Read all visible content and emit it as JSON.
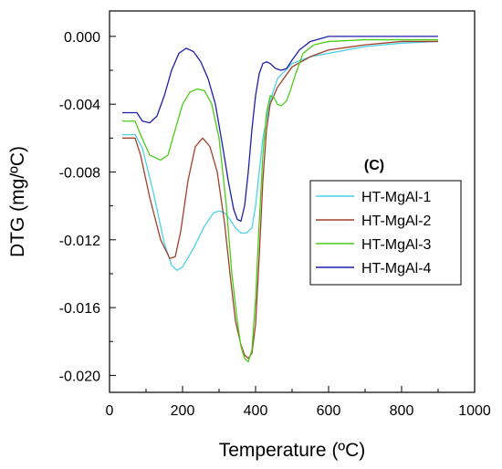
{
  "chart_data": {
    "type": "line",
    "panel_label": "(C)",
    "xlabel": "Temperature (ºC)",
    "ylabel": "DTG (mg/ºC)",
    "xlim": [
      0,
      1000
    ],
    "ylim": [
      -0.021,
      0.0015
    ],
    "x_ticks": [
      "0",
      "200",
      "400",
      "600",
      "800",
      "1000"
    ],
    "y_ticks": [
      "-0.020",
      "-0.016",
      "-0.012",
      "-0.008",
      "-0.004",
      "0.000"
    ],
    "x_tick_values": [
      0,
      200,
      400,
      600,
      800,
      1000
    ],
    "y_tick_values": [
      -0.02,
      -0.016,
      -0.012,
      -0.008,
      -0.004,
      0.0
    ],
    "legend_position": "right-center",
    "grid": false,
    "series": [
      {
        "name": "HT-MgAl-1",
        "color": "#4dd0e8",
        "x": [
          35,
          70,
          90,
          120,
          150,
          170,
          185,
          200,
          230,
          260,
          285,
          300,
          315,
          330,
          345,
          360,
          375,
          390,
          400,
          410,
          420,
          440,
          460,
          500,
          550,
          600,
          650,
          700,
          800,
          900
        ],
        "y": [
          -0.0058,
          -0.0058,
          -0.0066,
          -0.0092,
          -0.0122,
          -0.0135,
          -0.0138,
          -0.0136,
          -0.0125,
          -0.0112,
          -0.0104,
          -0.0103,
          -0.0104,
          -0.0108,
          -0.0113,
          -0.0116,
          -0.0116,
          -0.0113,
          -0.01,
          -0.008,
          -0.006,
          -0.0038,
          -0.0025,
          -0.0016,
          -0.0012,
          -0.001,
          -0.0008,
          -0.0006,
          -0.0004,
          -0.0003
        ]
      },
      {
        "name": "HT-MgAl-2",
        "color": "#a0402a",
        "x": [
          35,
          70,
          85,
          110,
          140,
          165,
          180,
          195,
          215,
          235,
          255,
          275,
          295,
          315,
          330,
          345,
          360,
          370,
          380,
          390,
          400,
          410,
          420,
          430,
          440,
          460,
          500,
          550,
          600,
          700,
          800,
          900
        ],
        "y": [
          -0.006,
          -0.006,
          -0.007,
          -0.0095,
          -0.012,
          -0.0131,
          -0.013,
          -0.0115,
          -0.0085,
          -0.0065,
          -0.006,
          -0.0065,
          -0.008,
          -0.011,
          -0.014,
          -0.0168,
          -0.0182,
          -0.0188,
          -0.019,
          -0.0187,
          -0.017,
          -0.013,
          -0.0085,
          -0.0055,
          -0.004,
          -0.003,
          -0.0018,
          -0.0012,
          -0.0008,
          -0.0005,
          -0.0003,
          -0.0003
        ]
      },
      {
        "name": "HT-MgAl-3",
        "color": "#4ccc1a",
        "x": [
          35,
          70,
          85,
          110,
          140,
          160,
          180,
          200,
          220,
          240,
          260,
          280,
          300,
          320,
          335,
          350,
          360,
          370,
          380,
          390,
          400,
          410,
          420,
          430,
          440,
          450,
          460,
          470,
          485,
          495,
          510,
          530,
          560,
          600,
          700,
          800,
          900
        ],
        "y": [
          -0.005,
          -0.005,
          -0.0058,
          -0.007,
          -0.0073,
          -0.007,
          -0.0055,
          -0.004,
          -0.0033,
          -0.0031,
          -0.0032,
          -0.004,
          -0.006,
          -0.01,
          -0.014,
          -0.0168,
          -0.0183,
          -0.019,
          -0.0192,
          -0.0185,
          -0.0155,
          -0.011,
          -0.007,
          -0.0045,
          -0.0035,
          -0.0036,
          -0.004,
          -0.0041,
          -0.0038,
          -0.0032,
          -0.0022,
          -0.001,
          -0.0005,
          -0.0003,
          -0.0002,
          -0.0002,
          -0.0002
        ]
      },
      {
        "name": "HT-MgAl-4",
        "color": "#1f1fa8",
        "x": [
          35,
          75,
          90,
          110,
          130,
          150,
          170,
          190,
          210,
          230,
          250,
          270,
          290,
          310,
          325,
          340,
          350,
          360,
          370,
          380,
          390,
          400,
          410,
          420,
          430,
          440,
          455,
          470,
          485,
          500,
          520,
          550,
          600,
          700,
          800,
          900
        ],
        "y": [
          -0.0045,
          -0.0045,
          -0.005,
          -0.0051,
          -0.0047,
          -0.0035,
          -0.002,
          -0.001,
          -0.0007,
          -0.0009,
          -0.0015,
          -0.0025,
          -0.004,
          -0.0065,
          -0.0085,
          -0.0102,
          -0.0108,
          -0.0109,
          -0.01,
          -0.008,
          -0.0055,
          -0.0035,
          -0.0022,
          -0.0016,
          -0.0015,
          -0.0016,
          -0.0019,
          -0.002,
          -0.0019,
          -0.0014,
          -0.0008,
          -0.0003,
          0.0,
          0.0,
          0.0,
          0.0
        ]
      }
    ]
  }
}
